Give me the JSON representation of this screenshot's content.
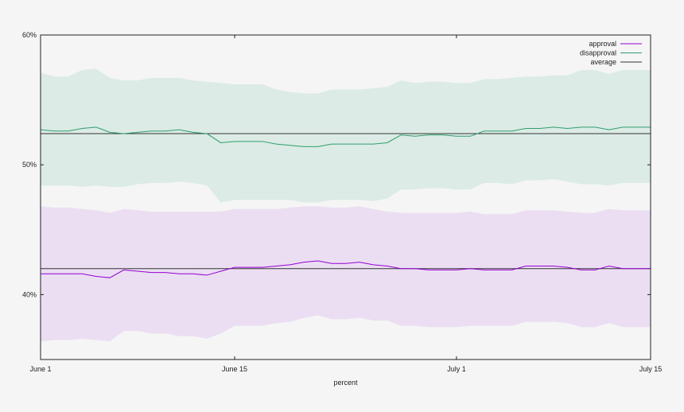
{
  "chart_data": {
    "type": "line",
    "title": "",
    "xlabel": "percent",
    "ylabel": "",
    "x_axis": {
      "ticks": [
        {
          "day": 1,
          "label": "June 1"
        },
        {
          "day": 15,
          "label": "June 15"
        },
        {
          "day": 31,
          "label": "July 1"
        },
        {
          "day": 45,
          "label": "July 15"
        }
      ],
      "range": [
        1,
        45
      ]
    },
    "y_axis": {
      "ticks": [
        {
          "value": 40,
          "label": "40%"
        },
        {
          "value": 50,
          "label": "50%"
        },
        {
          "value": 60,
          "label": "60%"
        }
      ],
      "range": [
        35,
        60
      ]
    },
    "legend_position": "top-right",
    "x": [
      1,
      2,
      3,
      4,
      5,
      6,
      7,
      8,
      9,
      10,
      11,
      12,
      13,
      14,
      15,
      16,
      17,
      18,
      19,
      20,
      21,
      22,
      23,
      24,
      25,
      26,
      27,
      28,
      29,
      30,
      31,
      32,
      33,
      34,
      35,
      36,
      37,
      38,
      39,
      40,
      41,
      42,
      43,
      44,
      45
    ],
    "series": [
      {
        "name": "approval",
        "color": "#9400d3",
        "band_color": "#ebdef2",
        "values": [
          41.6,
          41.6,
          41.6,
          41.6,
          41.4,
          41.3,
          41.9,
          41.8,
          41.7,
          41.7,
          41.6,
          41.6,
          41.5,
          41.8,
          42.1,
          42.1,
          42.1,
          42.2,
          42.3,
          42.5,
          42.6,
          42.4,
          42.4,
          42.5,
          42.3,
          42.2,
          42.0,
          42.0,
          41.9,
          41.9,
          41.9,
          42.0,
          41.9,
          41.9,
          41.9,
          42.2,
          42.2,
          42.2,
          42.1,
          41.9,
          41.9,
          42.2,
          42.0,
          42.0,
          42.0
        ],
        "band_upper": [
          46.8,
          46.7,
          46.7,
          46.6,
          46.5,
          46.3,
          46.6,
          46.5,
          46.4,
          46.4,
          46.4,
          46.4,
          46.4,
          46.4,
          46.6,
          46.6,
          46.6,
          46.6,
          46.7,
          46.8,
          46.8,
          46.7,
          46.7,
          46.8,
          46.6,
          46.4,
          46.3,
          46.3,
          46.3,
          46.3,
          46.3,
          46.4,
          46.2,
          46.2,
          46.2,
          46.5,
          46.5,
          46.5,
          46.4,
          46.3,
          46.3,
          46.6,
          46.5,
          46.5,
          46.5
        ],
        "band_lower": [
          36.4,
          36.5,
          36.5,
          36.6,
          36.5,
          36.4,
          37.2,
          37.2,
          37.0,
          37.0,
          36.8,
          36.8,
          36.6,
          37.0,
          37.6,
          37.6,
          37.6,
          37.8,
          37.9,
          38.2,
          38.4,
          38.1,
          38.1,
          38.2,
          38.0,
          38.0,
          37.6,
          37.6,
          37.5,
          37.5,
          37.5,
          37.6,
          37.6,
          37.6,
          37.6,
          37.9,
          37.9,
          37.9,
          37.8,
          37.5,
          37.5,
          37.8,
          37.5,
          37.5,
          37.5
        ]
      },
      {
        "name": "disapproval",
        "color": "#2e9e6e",
        "band_color": "#dcebe5",
        "values": [
          52.7,
          52.6,
          52.6,
          52.8,
          52.9,
          52.5,
          52.4,
          52.5,
          52.6,
          52.6,
          52.7,
          52.5,
          52.4,
          51.7,
          51.8,
          51.8,
          51.8,
          51.6,
          51.5,
          51.4,
          51.4,
          51.6,
          51.6,
          51.6,
          51.6,
          51.7,
          52.3,
          52.2,
          52.3,
          52.3,
          52.2,
          52.2,
          52.6,
          52.6,
          52.6,
          52.8,
          52.8,
          52.9,
          52.8,
          52.9,
          52.9,
          52.7,
          52.9,
          52.9,
          52.9
        ],
        "band_upper": [
          57.1,
          56.8,
          56.8,
          57.3,
          57.4,
          56.7,
          56.5,
          56.5,
          56.7,
          56.7,
          56.7,
          56.5,
          56.4,
          56.3,
          56.2,
          56.2,
          56.2,
          55.8,
          55.6,
          55.5,
          55.5,
          55.8,
          55.8,
          55.8,
          55.9,
          56.0,
          56.5,
          56.3,
          56.4,
          56.4,
          56.3,
          56.3,
          56.6,
          56.6,
          56.7,
          56.8,
          56.8,
          56.9,
          56.9,
          57.3,
          57.3,
          57.0,
          57.3,
          57.3,
          57.3
        ],
        "band_lower": [
          48.4,
          48.4,
          48.4,
          48.3,
          48.4,
          48.3,
          48.3,
          48.5,
          48.6,
          48.6,
          48.7,
          48.6,
          48.4,
          47.1,
          47.3,
          47.3,
          47.3,
          47.3,
          47.3,
          47.1,
          47.1,
          47.3,
          47.3,
          47.3,
          47.2,
          47.4,
          48.1,
          48.1,
          48.2,
          48.2,
          48.1,
          48.1,
          48.6,
          48.6,
          48.5,
          48.8,
          48.8,
          48.9,
          48.7,
          48.5,
          48.5,
          48.4,
          48.6,
          48.6,
          48.6
        ]
      }
    ],
    "reference_lines": [
      {
        "name": "average",
        "color": "#333333",
        "values": [
          52.4,
          42.0
        ]
      }
    ]
  }
}
